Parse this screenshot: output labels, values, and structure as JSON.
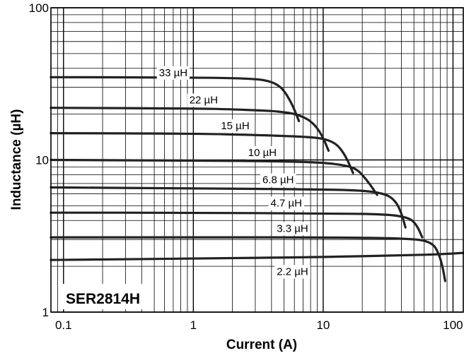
{
  "chart_data": {
    "type": "line",
    "title": "",
    "product_label": "SER2814H",
    "xlabel": "Current (A)",
    "ylabel": "Inductance (µH)",
    "x_scale": "log",
    "y_scale": "log",
    "xlim": [
      0.08,
      120
    ],
    "ylim": [
      1,
      100
    ],
    "x_ticks": [
      {
        "value": 0.1,
        "label": "0.1"
      },
      {
        "value": 1,
        "label": "1"
      },
      {
        "value": 10,
        "label": "10"
      },
      {
        "value": 100,
        "label": "100"
      }
    ],
    "y_ticks": [
      {
        "value": 1,
        "label": "1"
      },
      {
        "value": 10,
        "label": "10"
      },
      {
        "value": 100,
        "label": "100"
      }
    ],
    "grid": true,
    "line_color": "#222222",
    "grid_color": "#000000",
    "series": [
      {
        "name": "33 µH",
        "label_at": {
          "x": 0.7,
          "y": 37.5
        },
        "points": [
          [
            0.08,
            35
          ],
          [
            1,
            34.8
          ],
          [
            2,
            34.5
          ],
          [
            3,
            34.0
          ],
          [
            3.5,
            33.5
          ],
          [
            4,
            32.5
          ],
          [
            4.5,
            31
          ],
          [
            5,
            28.5
          ],
          [
            5.5,
            25
          ],
          [
            6,
            21.5
          ],
          [
            6.5,
            18
          ]
        ]
      },
      {
        "name": "22 µH",
        "label_at": {
          "x": 1.2,
          "y": 24.8
        },
        "points": [
          [
            0.08,
            22
          ],
          [
            1,
            21.8
          ],
          [
            2,
            21.5
          ],
          [
            3,
            21.2
          ],
          [
            4,
            21.0
          ],
          [
            5,
            20.6
          ],
          [
            6,
            20.1
          ],
          [
            7,
            19.2
          ],
          [
            8,
            18.0
          ],
          [
            9,
            16.2
          ],
          [
            10,
            14.0
          ],
          [
            11,
            11.5
          ]
        ]
      },
      {
        "name": "15 µH",
        "label_at": {
          "x": 2.1,
          "y": 16.8
        },
        "points": [
          [
            0.08,
            15
          ],
          [
            1,
            14.9
          ],
          [
            3,
            14.6
          ],
          [
            6,
            14.3
          ],
          [
            9,
            14.0
          ],
          [
            11,
            13.5
          ],
          [
            13,
            12.5
          ],
          [
            15,
            10.5
          ],
          [
            17,
            8.2
          ]
        ]
      },
      {
        "name": "10 µH",
        "label_at": {
          "x": 3.4,
          "y": 11.2
        },
        "points": [
          [
            0.08,
            10
          ],
          [
            1,
            9.9
          ],
          [
            5,
            9.8
          ],
          [
            10,
            9.6
          ],
          [
            15,
            9.2
          ],
          [
            18,
            8.7
          ],
          [
            20,
            8.0
          ],
          [
            23,
            6.9
          ],
          [
            26,
            5.9
          ]
        ]
      },
      {
        "name": "6.8 µH",
        "label_at": {
          "x": 4.5,
          "y": 7.4
        },
        "points": [
          [
            0.08,
            6.6
          ],
          [
            1,
            6.5
          ],
          [
            10,
            6.4
          ],
          [
            20,
            6.3
          ],
          [
            30,
            6.0
          ],
          [
            36,
            5.4
          ],
          [
            40,
            4.5
          ],
          [
            43,
            3.6
          ]
        ]
      },
      {
        "name": "4.7 µH",
        "label_at": {
          "x": 5.2,
          "y": 5.2
        },
        "points": [
          [
            0.08,
            4.5
          ],
          [
            1,
            4.5
          ],
          [
            10,
            4.45
          ],
          [
            30,
            4.4
          ],
          [
            45,
            4.2
          ],
          [
            52,
            3.8
          ],
          [
            58,
            3.1
          ]
        ]
      },
      {
        "name": "3.3 µH",
        "label_at": {
          "x": 5.8,
          "y": 3.55
        },
        "points": [
          [
            0.08,
            3.1
          ],
          [
            1,
            3.1
          ],
          [
            10,
            3.1
          ],
          [
            50,
            3.05
          ],
          [
            70,
            2.85
          ],
          [
            78,
            2.4
          ],
          [
            83,
            2.0
          ],
          [
            87,
            1.6
          ]
        ]
      },
      {
        "name": "2.2 µH",
        "label_at": {
          "x": 5.8,
          "y": 1.85
        },
        "points": [
          [
            0.08,
            2.2
          ],
          [
            1,
            2.25
          ],
          [
            10,
            2.3
          ],
          [
            50,
            2.37
          ],
          [
            80,
            2.4
          ],
          [
            120,
            2.45
          ]
        ]
      }
    ]
  }
}
